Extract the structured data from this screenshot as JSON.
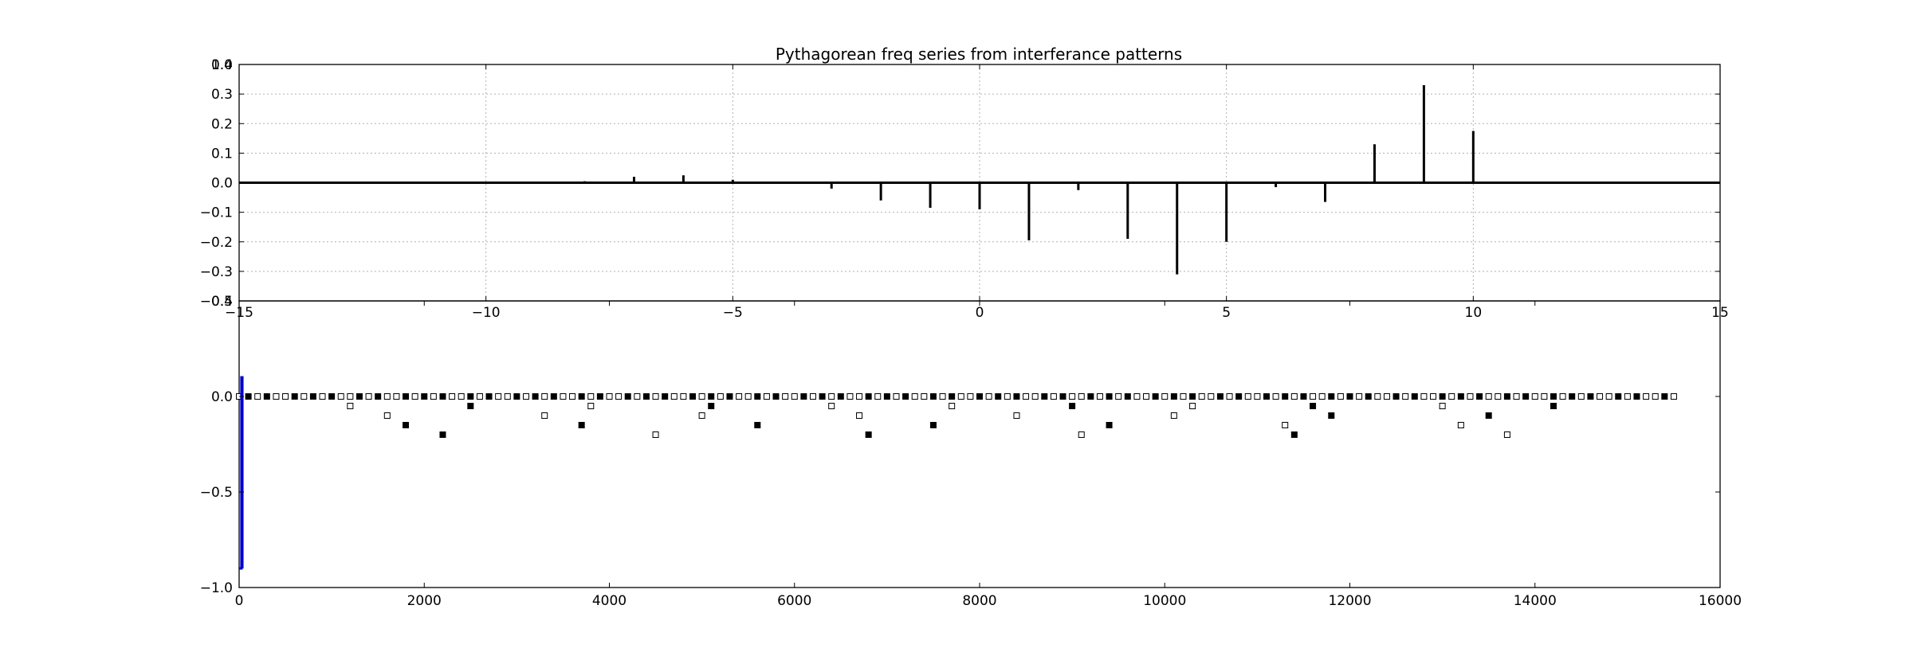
{
  "chart_data": [
    {
      "type": "bar",
      "title": "Pythagorean freq series from interferance patterns",
      "xlabel": "",
      "ylabel": "",
      "xlim": [
        -15,
        15
      ],
      "ylim": [
        -0.4,
        0.4
      ],
      "grid": true,
      "x_ticks": [
        "−15",
        "−10",
        "−5",
        "0",
        "5",
        "10",
        "15"
      ],
      "y_ticks": [
        "−0.4",
        "−0.3",
        "−0.2",
        "−0.1",
        "0.0",
        "0.1",
        "0.2",
        "0.3",
        "0.4"
      ],
      "x_tick_values": [
        -15,
        -10,
        -5,
        0,
        5,
        10,
        15
      ],
      "y_tick_values": [
        -0.4,
        -0.3,
        -0.2,
        -0.1,
        0.0,
        0.1,
        0.2,
        0.3,
        0.4
      ],
      "overlapping_label": "1.0",
      "series": [
        {
          "x": [
            -10,
            -8,
            -7,
            -6,
            -5,
            -4,
            -3,
            -2,
            -1,
            0,
            1,
            2,
            3,
            4,
            5,
            6,
            7,
            8,
            9,
            10
          ],
          "values": [
            0.004,
            0.005,
            0.02,
            0.025,
            0.01,
            0.003,
            -0.02,
            -0.06,
            -0.085,
            -0.09,
            -0.195,
            -0.025,
            -0.19,
            -0.31,
            -0.2,
            -0.015,
            -0.065,
            0.13,
            0.33,
            0.175
          ]
        }
      ],
      "color": "#000000"
    },
    {
      "type": "scatter",
      "xlim": [
        0,
        16000
      ],
      "ylim": [
        -1.0,
        0.5
      ],
      "grid": false,
      "x_ticks": [
        "0",
        "2000",
        "4000",
        "6000",
        "8000",
        "10000",
        "12000",
        "14000",
        "16000"
      ],
      "y_ticks": [
        "−1.0",
        "−0.5",
        "0.0",
        "0.5"
      ],
      "x_tick_values": [
        0,
        2000,
        4000,
        6000,
        8000,
        10000,
        12000,
        14000,
        16000
      ],
      "y_tick_values": [
        -1.0,
        -0.5,
        0.0,
        0.5
      ],
      "marker_row_start": 0,
      "marker_row_step": 100,
      "marker_row_end": 15500,
      "series": [
        {
          "style": "filled-square",
          "x": [
            100,
            300,
            600,
            800,
            1000,
            1300,
            1500,
            1800,
            2000,
            2200,
            2500,
            2700,
            3000,
            3200,
            3400,
            3700,
            3900,
            4200,
            4400,
            4600,
            4900,
            5100,
            5300,
            5600,
            5800,
            6100,
            6300,
            6500,
            6800,
            7000,
            7200,
            7500,
            7700,
            8000,
            8200,
            8400,
            8700,
            8900,
            9200,
            9400,
            9600,
            9900,
            10100,
            10300,
            10600,
            10800,
            11100,
            11300,
            11500,
            11800,
            12000,
            12200,
            12500,
            12700,
            13000,
            13200,
            13400,
            13700,
            13900,
            14200,
            14400,
            14600,
            14900,
            15100,
            15400
          ],
          "y": [
            0,
            0,
            0,
            0,
            0,
            0,
            0,
            0,
            0,
            0,
            0,
            0,
            0,
            0,
            0,
            0,
            0,
            0,
            0,
            0,
            0,
            0,
            0,
            0,
            0,
            0,
            0,
            0,
            0,
            0,
            0,
            0,
            0,
            0,
            0,
            0,
            0,
            0,
            0,
            0,
            0,
            0,
            0,
            0,
            0,
            0,
            0,
            0,
            0,
            0,
            0,
            0,
            0,
            0,
            0,
            0,
            0,
            0,
            0,
            0,
            0,
            0,
            0,
            0,
            0
          ],
          "drop_x": [
            1800,
            2200,
            2500,
            3700,
            5100,
            5600,
            6800,
            7500,
            9000,
            9400,
            11400,
            11600,
            11800,
            13500,
            14200
          ],
          "drop_y": [
            -0.15,
            -0.2,
            -0.05,
            -0.15,
            -0.05,
            -0.15,
            -0.2,
            -0.15,
            -0.05,
            -0.15,
            -0.2,
            -0.05,
            -0.1,
            -0.1,
            -0.05
          ]
        },
        {
          "style": "open-square",
          "drop_x": [
            1200,
            1600,
            3300,
            3800,
            4500,
            5000,
            6400,
            6700,
            7700,
            8400,
            9100,
            10100,
            10300,
            11300,
            13000,
            13200,
            13700
          ],
          "drop_y": [
            -0.05,
            -0.1,
            -0.1,
            -0.05,
            -0.2,
            -0.1,
            -0.05,
            -0.1,
            -0.05,
            -0.1,
            -0.2,
            -0.1,
            -0.05,
            -0.15,
            -0.05,
            -0.15,
            -0.2
          ]
        },
        {
          "style": "line",
          "color": "#0000cc",
          "x": [
            0,
            25,
            25,
            35,
            35
          ],
          "y": [
            -0.9,
            -0.9,
            0.1,
            0.1,
            -0.9
          ]
        }
      ]
    }
  ]
}
